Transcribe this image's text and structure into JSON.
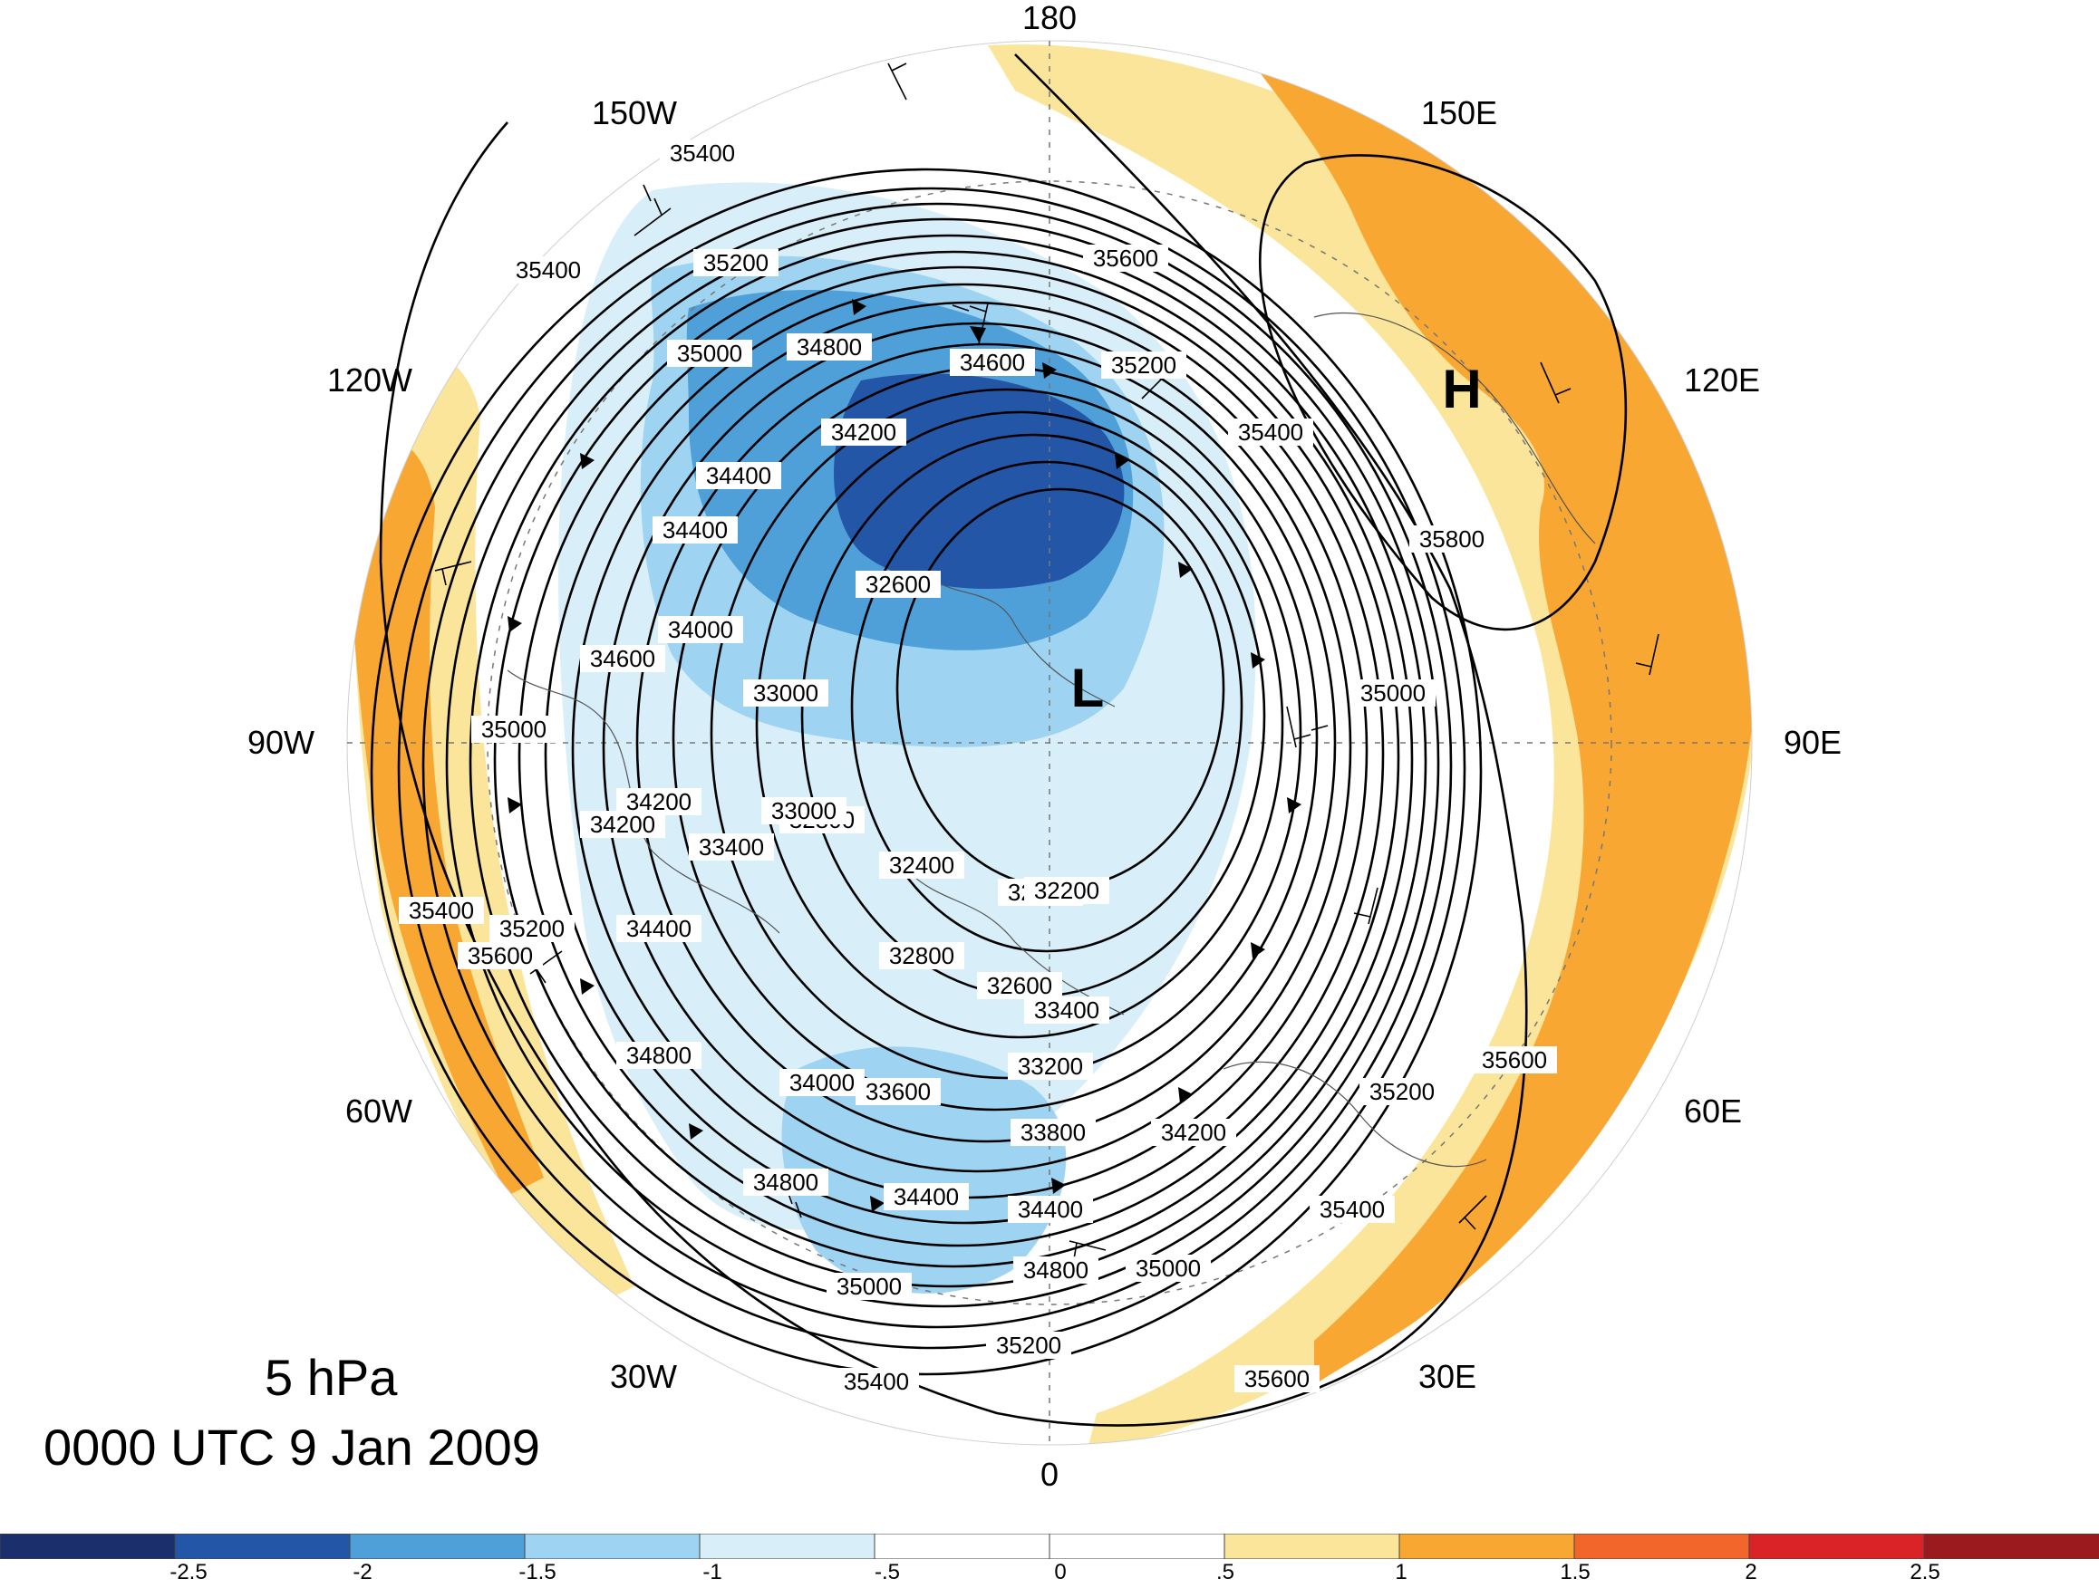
{
  "title": {
    "level": "5 hPa",
    "time": "0000 UTC 9 Jan 2009"
  },
  "longitude_labels": {
    "lon_180": "180",
    "lon_150e": "150E",
    "lon_120e": "120E",
    "lon_90e": "90E",
    "lon_60e": "60E",
    "lon_30e": "30E",
    "lon_0": "0",
    "lon_30w": "30W",
    "lon_60w": "60W",
    "lon_90w": "90W",
    "lon_120w": "120W",
    "lon_150w": "150W"
  },
  "pressure_systems": {
    "high": "H",
    "low": "L"
  },
  "contour_values": [
    "35400",
    "35200",
    "35000",
    "34800",
    "34600",
    "34400",
    "34200",
    "34000",
    "33800",
    "33600",
    "33400",
    "33200",
    "33000",
    "32800",
    "32600",
    "32400",
    "32200",
    "35600",
    "35800"
  ],
  "colorbar": {
    "ticks": [
      "-2.5",
      "-2",
      "-1.5",
      "-1",
      "-.5",
      "0",
      ".5",
      "1",
      "1.5",
      "2",
      "2.5"
    ],
    "colors": [
      "#1b2f6c",
      "#2356a6",
      "#4f9fd8",
      "#9ed4f2",
      "#d8eef9",
      "#ffffff",
      "#ffffff",
      "#fbe59a",
      "#f9a733",
      "#f2652b",
      "#da2327",
      "#9b1a1d"
    ]
  },
  "shading_colors": {
    "deep_blue": "#2356a6",
    "blue": "#4f9fd8",
    "light_blue": "#9ed4f2",
    "pale_blue": "#d8eef9",
    "pale_yellow": "#fbe59a",
    "orange": "#f9a733"
  }
}
